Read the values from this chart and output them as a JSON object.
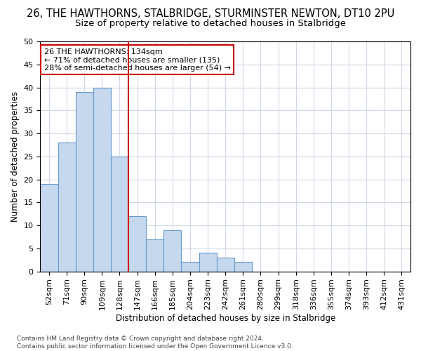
{
  "title1": "26, THE HAWTHORNS, STALBRIDGE, STURMINSTER NEWTON, DT10 2PU",
  "title2": "Size of property relative to detached houses in Stalbridge",
  "xlabel": "Distribution of detached houses by size in Stalbridge",
  "ylabel": "Number of detached properties",
  "bar_values": [
    19,
    28,
    39,
    40,
    25,
    12,
    7,
    9,
    2,
    4,
    3,
    2,
    0,
    0,
    0,
    0,
    0,
    0,
    0,
    0,
    0
  ],
  "bar_labels": [
    "52sqm",
    "71sqm",
    "90sqm",
    "109sqm",
    "128sqm",
    "147sqm",
    "166sqm",
    "185sqm",
    "204sqm",
    "223sqm",
    "242sqm",
    "261sqm",
    "280sqm",
    "299sqm",
    "318sqm",
    "336sqm",
    "355sqm",
    "374sqm",
    "393sqm",
    "412sqm",
    "431sqm"
  ],
  "bar_color": "#c5d8ee",
  "bar_edge_color": "#6699cc",
  "vline_color": "#cc0000",
  "annotation_text": "26 THE HAWTHORNS: 134sqm\n← 71% of detached houses are smaller (135)\n28% of semi-detached houses are larger (54) →",
  "annotation_box_color": "#ffffff",
  "annotation_box_edge": "#cc0000",
  "ylim": [
    0,
    50
  ],
  "yticks": [
    0,
    5,
    10,
    15,
    20,
    25,
    30,
    35,
    40,
    45,
    50
  ],
  "grid_color": "#d0d8e8",
  "background_color": "#ffffff",
  "footer_text": "Contains HM Land Registry data © Crown copyright and database right 2024.\nContains public sector information licensed under the Open Government Licence v3.0.",
  "title1_fontsize": 10.5,
  "title2_fontsize": 9.5,
  "xlabel_fontsize": 8.5,
  "ylabel_fontsize": 8.5,
  "tick_fontsize": 8,
  "annotation_fontsize": 8,
  "footer_fontsize": 6.5
}
